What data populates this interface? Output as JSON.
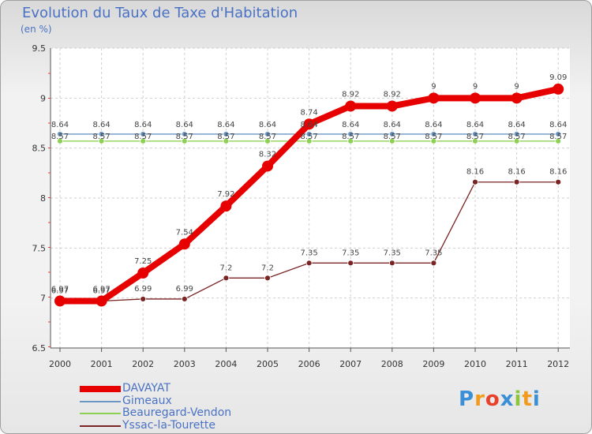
{
  "chart_data": {
    "type": "line",
    "title": "Evolution du Taux de Taxe d'Habitation",
    "ylabel": "(en %)",
    "xlabel": "",
    "x": [
      "2000",
      "2001",
      "2002",
      "2003",
      "2004",
      "2005",
      "2006",
      "2007",
      "2008",
      "2009",
      "2010",
      "2011",
      "2012"
    ],
    "ylim": [
      6.5,
      9.5
    ],
    "yticks": [
      "6.5",
      "7",
      "7.5",
      "8",
      "8.5",
      "9",
      "9.5"
    ],
    "series": [
      {
        "name": "DAVAYAT",
        "color": "#e60000",
        "values": [
          6.97,
          6.97,
          7.25,
          7.54,
          7.92,
          8.32,
          8.74,
          8.92,
          8.92,
          9,
          9,
          9,
          9.09
        ],
        "labels": [
          "6.97",
          "6.97",
          "7.25",
          "7.54",
          "7.92",
          "8.32",
          "8.74",
          "8.92",
          "8.92",
          "9",
          "9",
          "9",
          "9.09"
        ]
      },
      {
        "name": "Gimeaux",
        "color": "#6b96c4",
        "values": [
          8.64,
          8.64,
          8.64,
          8.64,
          8.64,
          8.64,
          8.64,
          8.64,
          8.64,
          8.64,
          8.64,
          8.64,
          8.64
        ],
        "labels": [
          "8.64",
          "8.64",
          "8.64",
          "8.64",
          "8.64",
          "8.64",
          "8.64",
          "8.64",
          "8.64",
          "8.64",
          "8.64",
          "8.64",
          "8.64"
        ]
      },
      {
        "name": "Beauregard-Vendon",
        "color": "#8ed053",
        "values": [
          8.57,
          8.57,
          8.57,
          8.57,
          8.57,
          8.57,
          8.57,
          8.57,
          8.57,
          8.57,
          8.57,
          8.57,
          8.57
        ],
        "labels": [
          "8.57",
          "8.57",
          "8.57",
          "8.57",
          "8.57",
          "8.57",
          "8.57",
          "8.57",
          "8.57",
          "8.57",
          "8.57",
          "8.57",
          "8.57"
        ]
      },
      {
        "name": "Yssac-la-Tourette",
        "color": "#7a2424",
        "values": [
          6.97,
          6.97,
          6.99,
          6.99,
          7.2,
          7.2,
          7.35,
          7.35,
          7.35,
          7.35,
          8.16,
          8.16,
          8.16
        ],
        "labels": [
          "6.97",
          "6.97",
          "6.99",
          "6.99",
          "7.2",
          "7.2",
          "7.35",
          "7.35",
          "7.35",
          "7.35",
          "8.16",
          "8.16",
          "8.16"
        ]
      }
    ],
    "grid": true,
    "legend": "bottom-left"
  },
  "brand": {
    "letters": [
      "P",
      "r",
      "o",
      "x",
      "i",
      "t",
      "i"
    ],
    "colors": [
      "#3a8fd6",
      "#f29a1d",
      "#e8402a",
      "#3a8fd6",
      "#8cc63f",
      "#f29a1d",
      "#3a8fd6"
    ]
  }
}
